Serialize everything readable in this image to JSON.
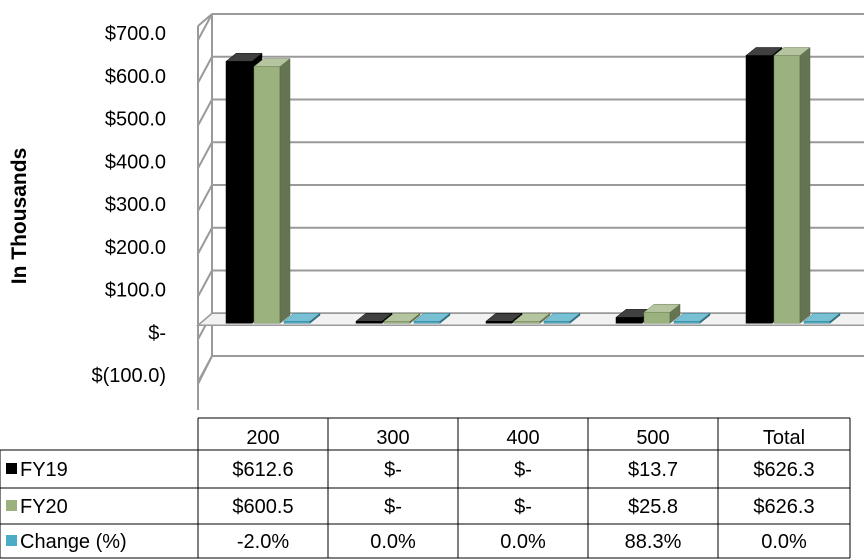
{
  "chart_data": {
    "type": "bar",
    "ylabel": "In Thousands",
    "ylim": [
      -100,
      700
    ],
    "yticks": [
      "$(100.0)",
      "$-",
      "$100.0",
      "$200.0",
      "$300.0",
      "$400.0",
      "$500.0",
      "$600.0",
      "$700.0"
    ],
    "ytick_values": [
      -100,
      0,
      100,
      200,
      300,
      400,
      500,
      600,
      700
    ],
    "categories": [
      "200",
      "300",
      "400",
      "500",
      "Total"
    ],
    "grid": true,
    "style": "3d-clustered-column",
    "series": [
      {
        "name": "FY19",
        "values": [
          612.6,
          0,
          0,
          13.7,
          626.3
        ],
        "color": "#000000",
        "labels": [
          "$612.6",
          "$-",
          "$-",
          "$13.7",
          "$626.3"
        ]
      },
      {
        "name": "FY20",
        "values": [
          600.5,
          0,
          0,
          25.8,
          626.3
        ],
        "color": "#9bb27f",
        "labels": [
          "$600.5",
          "$-",
          "$-",
          "$25.8",
          "$626.3"
        ]
      },
      {
        "name": "Change (%)",
        "values": [
          -2.0,
          0.0,
          0.0,
          88.3,
          0.0
        ],
        "color": "#4bacc6",
        "labels": [
          "-2.0%",
          "0.0%",
          "0.0%",
          "88.3%",
          "0.0%"
        ]
      }
    ],
    "data_table": true
  }
}
